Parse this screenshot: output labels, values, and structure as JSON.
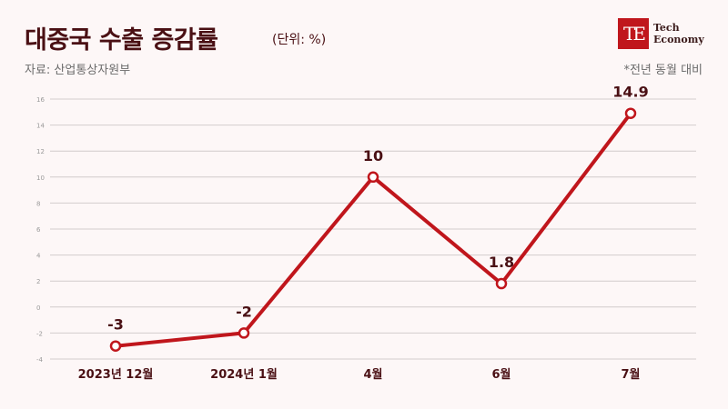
{
  "header": {
    "title": "대중국 수출 증감률",
    "unit": "(단위: %)",
    "source": "자료: 산업통상자원부",
    "note": "*전년 동월 대비"
  },
  "logo": {
    "mark": "TE",
    "line1": "Tech",
    "line2": "Economy"
  },
  "chart_data": {
    "type": "line",
    "categories": [
      "2023년 12월",
      "2024년 1월",
      "4월",
      "6월",
      "7월"
    ],
    "values": [
      -3,
      -2,
      10,
      1.8,
      14.9
    ],
    "data_labels": [
      "-3",
      "-2",
      "10",
      "1.8",
      "14.9"
    ],
    "y_ticks": [
      "16",
      "14",
      "12",
      "10",
      "8",
      "6",
      "4",
      "2",
      "0",
      "-2",
      "-4"
    ],
    "ylim": [
      -4,
      16
    ],
    "grid": true,
    "line_color": "#c0161c",
    "marker_fill": "#ffffff"
  }
}
